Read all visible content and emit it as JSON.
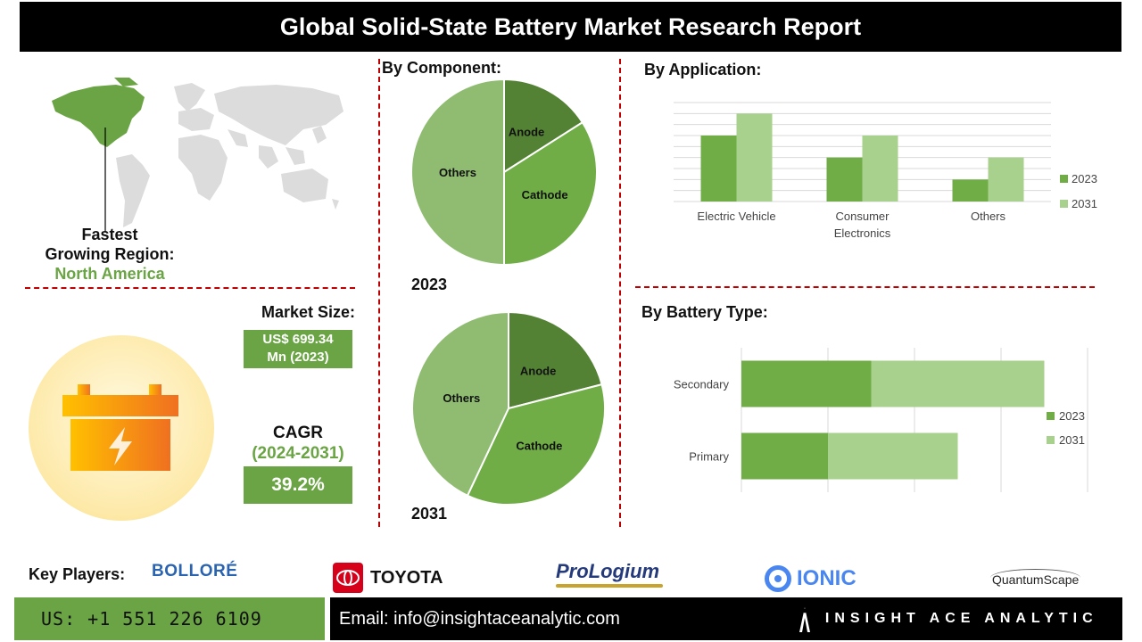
{
  "header": {
    "title": "Global Solid-State Battery Market Research Report"
  },
  "region": {
    "label_line1": "Fastest",
    "label_line2": "Growing Region:",
    "value": "North America"
  },
  "market": {
    "size_label": "Market Size:",
    "size_value_line1": "US$ 699.34",
    "size_value_line2": "Mn (2023)",
    "cagr_label": "CAGR",
    "cagr_period": "(2024-2031)",
    "cagr_value": "39.2%"
  },
  "component_section": {
    "title": "By Component:"
  },
  "application_section": {
    "title": "By Application:"
  },
  "battery_section": {
    "title": "By Battery Type:"
  },
  "colors": {
    "dark_green": "#548235",
    "mid_green": "#70ad47",
    "light_green": "#a9d18e",
    "pie_light": "#8fbc71",
    "accent_red": "#c00000",
    "region_green": "#6aa444"
  },
  "chart_data": [
    {
      "type": "pie",
      "title": "2023",
      "slices": [
        {
          "label": "Anode",
          "value": 16
        },
        {
          "label": "Cathode",
          "value": 34
        },
        {
          "label": "Others",
          "value": 50
        }
      ]
    },
    {
      "type": "pie",
      "title": "2031",
      "slices": [
        {
          "label": "Anode",
          "value": 21
        },
        {
          "label": "Cathode",
          "value": 36
        },
        {
          "label": "Others",
          "value": 43
        }
      ]
    },
    {
      "type": "bar",
      "title": "By Application:",
      "categories": [
        "Electric Vehicle",
        "Consumer Electronics",
        "Others"
      ],
      "series": [
        {
          "name": "2023",
          "values": [
            3,
            2,
            1
          ]
        },
        {
          "name": "2031",
          "values": [
            4,
            3,
            2
          ]
        }
      ],
      "ylim": [
        0,
        4.5
      ],
      "legend": "right"
    },
    {
      "type": "bar",
      "orientation": "horizontal",
      "stacked": true,
      "title": "By Battery Type:",
      "categories": [
        "Secondary",
        "Primary"
      ],
      "series": [
        {
          "name": "2023",
          "values": [
            1.5,
            1.0
          ]
        },
        {
          "name": "2031",
          "values": [
            2.0,
            1.5
          ]
        }
      ],
      "xlim": [
        0,
        4.0
      ],
      "legend": "right"
    }
  ],
  "key_players": {
    "label": "Key Players:",
    "companies": [
      "BOLLORÉ",
      "TOYOTA",
      "ProLogium",
      "IONIC",
      "QuantumScape"
    ]
  },
  "footer": {
    "phone": "US: +1 551 226 6109",
    "email": "Email: info@insightaceanalytic.com",
    "brand": "INSIGHT ACE ANALYTIC"
  }
}
